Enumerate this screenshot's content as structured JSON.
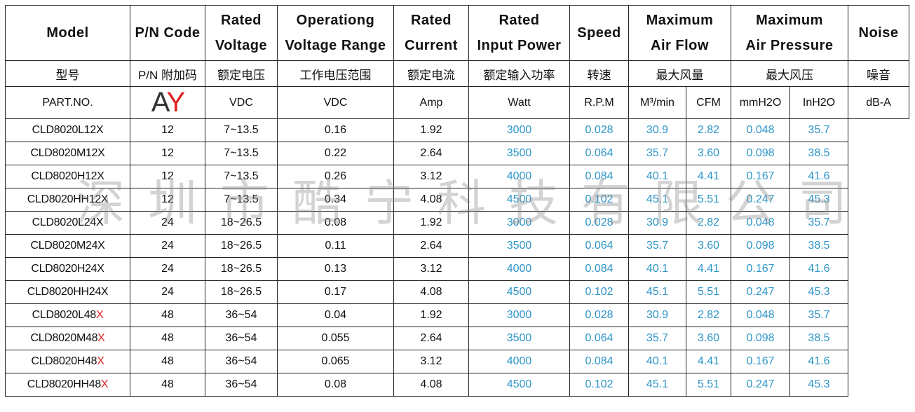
{
  "header": {
    "model": "Model",
    "pn_code": "P/N Code",
    "rated_voltage": [
      "Rated",
      "Voltage"
    ],
    "operating_range": [
      "Operationg",
      "Voltage Range"
    ],
    "rated_current": [
      "Rated",
      "Current"
    ],
    "rated_power": [
      "Rated",
      "Input Power"
    ],
    "speed": "Speed",
    "max_airflow": [
      "Maximum",
      "Air Flow"
    ],
    "max_pressure": [
      "Maximum",
      "Air Pressure"
    ],
    "noise": "Noise"
  },
  "chinese": {
    "model": "型号",
    "pn_code": "P/N 附加码",
    "rated_voltage": "额定电压",
    "operating_range": "工作电压范围",
    "rated_current": "额定电流",
    "rated_power": "额定输入功率",
    "speed": "转速",
    "max_airflow": "最大风量",
    "max_pressure": "最大风压",
    "noise": "噪音"
  },
  "units": {
    "model": "PART.NO.",
    "voltage": "VDC",
    "range": "VDC",
    "current": "Amp",
    "power": "Watt",
    "speed": "R.P.M",
    "flow_m3": "M³/min",
    "flow_cfm": "CFM",
    "pressure_mm": "mmH2O",
    "pressure_in": "InH2O",
    "noise": "dB-A"
  },
  "pn_logo": {
    "a": "A",
    "y": "Y"
  },
  "rows": [
    {
      "prefix": "CLD8020L12",
      "suffix": "X",
      "voltage": "12",
      "range": "7~13.5",
      "current": "0.16",
      "power": "1.92",
      "speed": "3000",
      "m3": "0.028",
      "cfm": "30.9",
      "mm": "2.82",
      "in": "0.048",
      "noise": "35.7"
    },
    {
      "prefix": "CLD8020M12",
      "suffix": "X",
      "voltage": "12",
      "range": "7~13.5",
      "current": "0.22",
      "power": "2.64",
      "speed": "3500",
      "m3": "0.064",
      "cfm": "35.7",
      "mm": "3.60",
      "in": "0.098",
      "noise": "38.5"
    },
    {
      "prefix": "CLD8020H12",
      "suffix": "X",
      "voltage": "12",
      "range": "7~13.5",
      "current": "0.26",
      "power": "3.12",
      "speed": "4000",
      "m3": "0.084",
      "cfm": "40.1",
      "mm": "4.41",
      "in": "0.167",
      "noise": "41.6"
    },
    {
      "prefix": "CLD8020HH12",
      "suffix": "X",
      "voltage": "12",
      "range": "7~13.5",
      "current": "0.34",
      "power": "4.08",
      "speed": "4500",
      "m3": "0.102",
      "cfm": "45.1",
      "mm": "5.51",
      "in": "0.247",
      "noise": "45.3"
    },
    {
      "prefix": "CLD8020L24",
      "suffix": "X",
      "voltage": "24",
      "range": "18~26.5",
      "current": "0.08",
      "power": "1.92",
      "speed": "3000",
      "m3": "0.028",
      "cfm": "30.9",
      "mm": "2.82",
      "in": "0.048",
      "noise": "35.7"
    },
    {
      "prefix": "CLD8020M24",
      "suffix": "X",
      "voltage": "24",
      "range": "18~26.5",
      "current": "0.11",
      "power": "2.64",
      "speed": "3500",
      "m3": "0.064",
      "cfm": "35.7",
      "mm": "3.60",
      "in": "0.098",
      "noise": "38.5"
    },
    {
      "prefix": "CLD8020H24",
      "suffix": "X",
      "voltage": "24",
      "range": "18~26.5",
      "current": "0.13",
      "power": "3.12",
      "speed": "4000",
      "m3": "0.084",
      "cfm": "40.1",
      "mm": "4.41",
      "in": "0.167",
      "noise": "41.6"
    },
    {
      "prefix": "CLD8020HH24",
      "suffix": "X",
      "voltage": "24",
      "range": "18~26.5",
      "current": "0.17",
      "power": "4.08",
      "speed": "4500",
      "m3": "0.102",
      "cfm": "45.1",
      "mm": "5.51",
      "in": "0.247",
      "noise": "45.3"
    },
    {
      "prefix": "CLD8020L48",
      "suffix": "X",
      "suffix_red": true,
      "voltage": "48",
      "range": "36~54",
      "current": "0.04",
      "power": "1.92",
      "speed": "3000",
      "m3": "0.028",
      "cfm": "30.9",
      "mm": "2.82",
      "in": "0.048",
      "noise": "35.7"
    },
    {
      "prefix": "CLD8020M48",
      "suffix": "X",
      "suffix_red": true,
      "voltage": "48",
      "range": "36~54",
      "current": "0.055",
      "power": "2.64",
      "speed": "3500",
      "m3": "0.064",
      "cfm": "35.7",
      "mm": "3.60",
      "in": "0.098",
      "noise": "38.5"
    },
    {
      "prefix": "CLD8020H48",
      "suffix": "X",
      "suffix_red": true,
      "voltage": "48",
      "range": "36~54",
      "current": "0.065",
      "power": "3.12",
      "speed": "4000",
      "m3": "0.084",
      "cfm": "40.1",
      "mm": "4.41",
      "in": "0.167",
      "noise": "41.6"
    },
    {
      "prefix": "CLD8020HH48",
      "suffix": "X",
      "suffix_red": true,
      "voltage": "48",
      "range": "36~54",
      "current": "0.08",
      "power": "4.08",
      "speed": "4500",
      "m3": "0.102",
      "cfm": "45.1",
      "mm": "5.51",
      "in": "0.247",
      "noise": "45.3"
    }
  ],
  "watermark": [
    "深",
    "圳",
    "市",
    "酷",
    "宁",
    "科",
    "技",
    "有",
    "限",
    "公",
    "司"
  ],
  "colors": {
    "value_blue": "#2d95c8",
    "grid_blue": "#7fd0ee",
    "suffix_red": "#dd2222",
    "logo_red": "#e02020"
  }
}
